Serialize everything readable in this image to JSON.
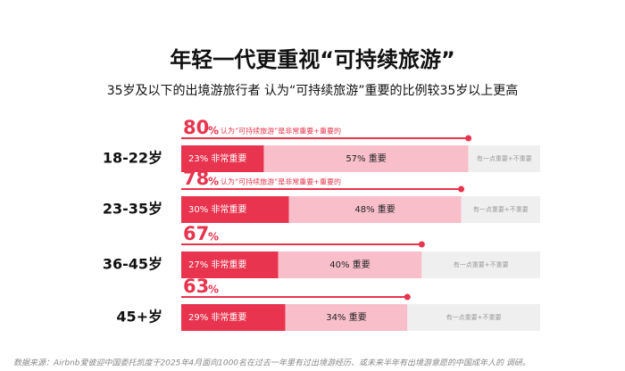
{
  "chart_data": {
    "type": "stacked-bar-horizontal",
    "title": "年轻一代更重视“可持续旅游”",
    "subtitle": "35岁及以下的出境游旅行者 认为“可持续旅游”重要的比例较35岁以上更高",
    "categories": [
      "18-22岁",
      "23-35岁",
      "36-45岁",
      "45+岁"
    ],
    "xlim": [
      0,
      100
    ],
    "series": [
      {
        "name": "非常重要",
        "color": "#e8344e",
        "values": [
          23,
          30,
          27,
          29
        ],
        "value_labels": [
          "23% 非常重要",
          "30% 非常重要",
          "27% 非常重要",
          "29% 非常重要"
        ]
      },
      {
        "name": "重要",
        "color": "#f8bfca",
        "values": [
          57,
          48,
          40,
          34
        ],
        "value_labels": [
          "57% 重要",
          "48% 重要",
          "40% 重要",
          "34% 重要"
        ]
      },
      {
        "name": "有一点重要+不重要",
        "color": "#efefef",
        "values": [
          20,
          22,
          33,
          37
        ]
      }
    ],
    "totals": {
      "values": [
        80,
        78,
        67,
        63
      ],
      "unit": "%",
      "color": "#e8344e",
      "annotation": "认为“可持续旅游”是非常重要+重要的"
    },
    "source": "数据来源：Airbnb爱彼迎中国委托凯度于2025年4月面向1000名在过去一年里有过出境游经历、或未来半年有出境游意愿的中国成年人的 调研。"
  }
}
